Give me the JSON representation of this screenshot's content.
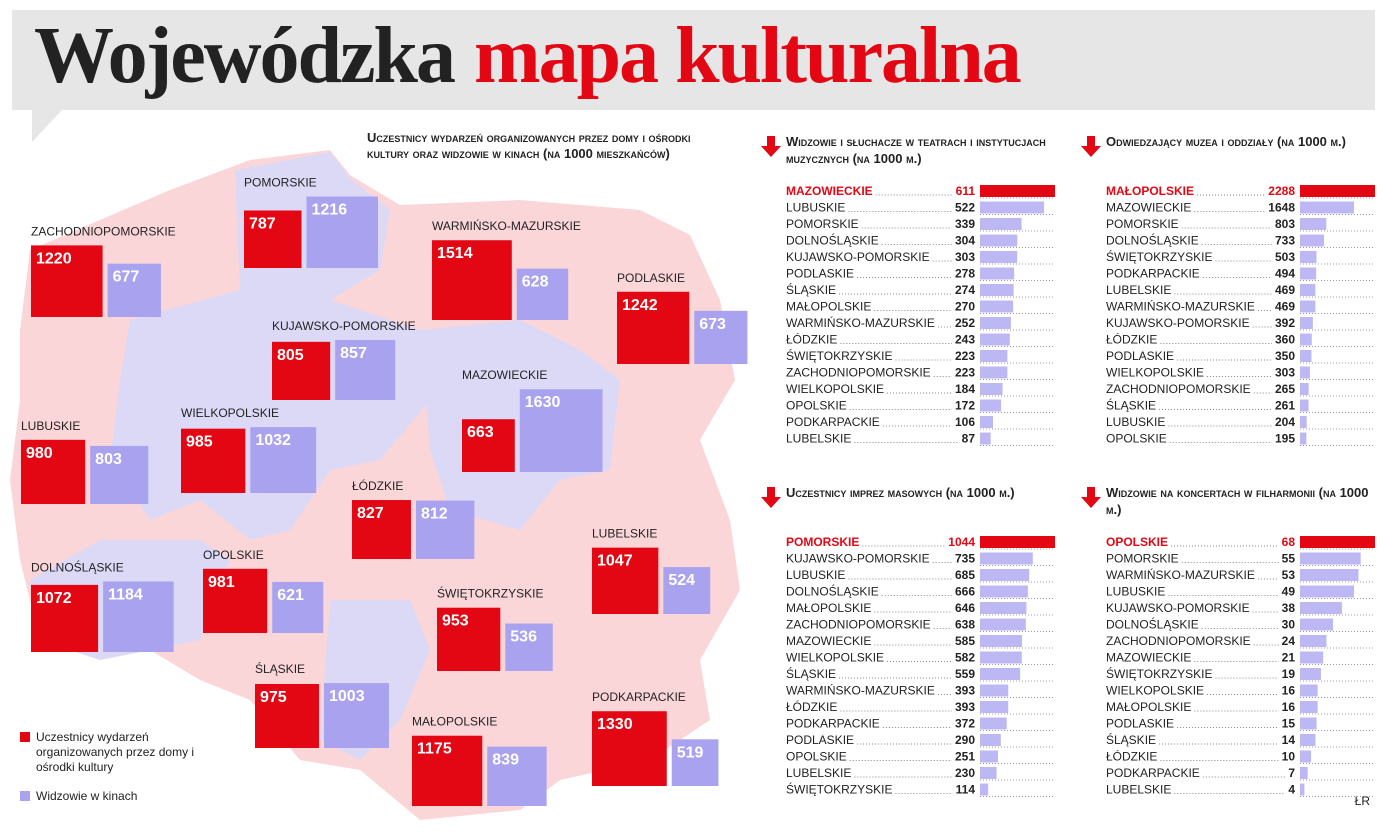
{
  "header": {
    "title_part1": "Wojewódzka",
    "title_part2": "mapa kulturalna"
  },
  "credit": "ŁR",
  "chart_data": [
    {
      "type": "map",
      "title": "Uczestnicy wydarzeń organizowanych przez domy i ośrodki kultury oraz widzowie w kinach (na 1000 mieszkańców)",
      "categories": [
        "ZACHODNIOPOMORSKIE",
        "POMORSKIE",
        "WARMIŃSKO-MAZURSKIE",
        "PODLASKIE",
        "KUJAWSKO-POMORSKIE",
        "MAZOWIECKIE",
        "WIELKOPOLSKIE",
        "LUBUSKIE",
        "ŁÓDZKIE",
        "LUBELSKIE",
        "DOLNOŚLĄSKIE",
        "OPOLSKIE",
        "ŚWIĘTOKRZYSKIE",
        "ŚLĄSKIE",
        "MAŁOPOLSKIE",
        "PODKARPACKIE"
      ],
      "series": [
        {
          "name": "Uczestnicy wydarzeń organizowanych przez domy i ośrodki kultury",
          "color": "#e30613",
          "values": [
            1220,
            787,
            1514,
            1242,
            805,
            663,
            985,
            980,
            827,
            1047,
            1072,
            981,
            953,
            975,
            1175,
            1330
          ]
        },
        {
          "name": "Widzowie w kinach",
          "color": "#a9a3ef",
          "values": [
            677,
            1216,
            628,
            673,
            857,
            1630,
            1032,
            803,
            812,
            524,
            1184,
            621,
            536,
            1003,
            839,
            519
          ]
        }
      ]
    },
    {
      "type": "bar",
      "title": "Widzowie i słuchacze w teatrach i instytucjach muzycznych (na 1000 m.)",
      "color": "#bdb8f3",
      "highlight_color": "#e30613",
      "categories": [
        "MAZOWIECKIE",
        "LUBUSKIE",
        "POMORSKIE",
        "DOLNOŚLĄSKIE",
        "KUJAWSKO-POMORSKIE",
        "PODLASKIE",
        "ŚLĄSKIE",
        "MAŁOPOLSKIE",
        "WARMIŃSKO-MAZURSKIE",
        "ŁÓDZKIE",
        "ŚWIĘTOKRZYSKIE",
        "ZACHODNIOPOMORSKIE",
        "WIELKOPOLSKIE",
        "OPOLSKIE",
        "PODKARPACKIE",
        "LUBELSKIE"
      ],
      "values": [
        611,
        522,
        339,
        304,
        303,
        278,
        274,
        270,
        252,
        243,
        223,
        223,
        184,
        172,
        106,
        87
      ]
    },
    {
      "type": "bar",
      "title": "Odwiedzający muzea i oddziały (na 1000 m.)",
      "color": "#bdb8f3",
      "highlight_color": "#e30613",
      "categories": [
        "MAŁOPOLSKIE",
        "MAZOWIECKIE",
        "POMORSKIE",
        "DOLNOŚLĄSKIE",
        "ŚWIĘTOKRZYSKIE",
        "PODKARPACKIE",
        "LUBELSKIE",
        "WARMIŃSKO-MAZURSKIE",
        "KUJAWSKO-POMORSKIE",
        "ŁÓDZKIE",
        "PODLASKIE",
        "WIELKOPOLSKIE",
        "ZACHODNIOPOMORSKIE",
        "ŚLĄSKIE",
        "LUBUSKIE",
        "OPOLSKIE"
      ],
      "values": [
        2288,
        1648,
        803,
        733,
        503,
        494,
        469,
        469,
        392,
        360,
        350,
        303,
        265,
        261,
        204,
        195
      ]
    },
    {
      "type": "bar",
      "title": "Uczestnicy imprez masowych (na 1000 m.)",
      "color": "#bdb8f3",
      "highlight_color": "#e30613",
      "categories": [
        "POMORSKIE",
        "KUJAWSKO-POMORSKIE",
        "LUBUSKIE",
        "DOLNOŚLĄSKIE",
        "MAŁOPOLSKIE",
        "ZACHODNIOPOMORSKIE",
        "MAZOWIECKIE",
        "WIELKOPOLSKIE",
        "ŚLĄSKIE",
        "WARMIŃSKO-MAZURSKIE",
        "ŁÓDZKIE",
        "PODKARPACKIE",
        "PODLASKIE",
        "OPOLSKIE",
        "LUBELSKIE",
        "ŚWIĘTOKRZYSKIE"
      ],
      "values": [
        1044,
        735,
        685,
        666,
        646,
        638,
        585,
        582,
        559,
        393,
        393,
        372,
        290,
        251,
        230,
        114
      ]
    },
    {
      "type": "bar",
      "title": "Widzowie na koncertach w filharmonii (na 1000 m.)",
      "color": "#bdb8f3",
      "highlight_color": "#e30613",
      "categories": [
        "OPOLSKIE",
        "POMORSKIE",
        "WARMIŃSKO-MAZURSKIE",
        "LUBUSKIE",
        "KUJAWSKO-POMORSKIE",
        "DOLNOŚLĄSKIE",
        "ZACHODNIOPOMORSKIE",
        "MAZOWIECKIE",
        "ŚWIĘTOKRZYSKIE",
        "WIELKOPOLSKIE",
        "MAŁOPOLSKIE",
        "PODLASKIE",
        "ŚLĄSKIE",
        "ŁÓDZKIE",
        "PODKARPACKIE",
        "LUBELSKIE"
      ],
      "values": [
        68,
        55,
        53,
        49,
        38,
        30,
        24,
        21,
        19,
        16,
        16,
        15,
        14,
        10,
        7,
        4
      ]
    }
  ]
}
